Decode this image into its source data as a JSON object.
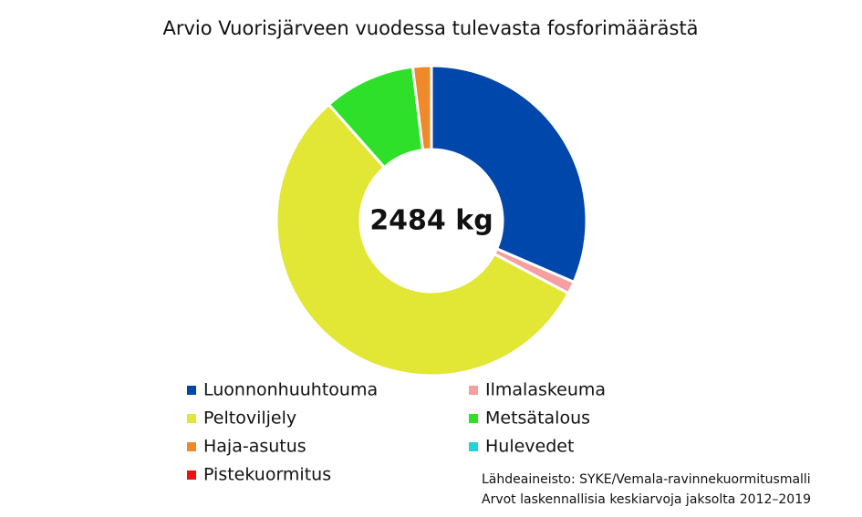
{
  "chart_data": {
    "type": "donut",
    "title": "Arvio Vuorisjärveen vuodessa tulevasta fosforimäärästä",
    "center_label": "2484 kg",
    "categories": [
      "Luonnonhuuhtouma",
      "Ilmalaskeuma",
      "Peltoviljely",
      "Metsätalous",
      "Haja-asutus",
      "Hulevedet",
      "Pistekuormitus"
    ],
    "values": [
      782,
      32,
      1384,
      238,
      48,
      0,
      0
    ],
    "colors": [
      "#0047ab",
      "#f4a0a0",
      "#e2e634",
      "#2ee02a",
      "#ee8a2a",
      "#22d4d4",
      "#ee1111"
    ],
    "source": [
      "Lähdeaineisto: SYKE/Vemala-ravinnekuormitusmalli",
      "Arvot laskennallisia keskiarvoja jaksolta 2012–2019"
    ]
  }
}
